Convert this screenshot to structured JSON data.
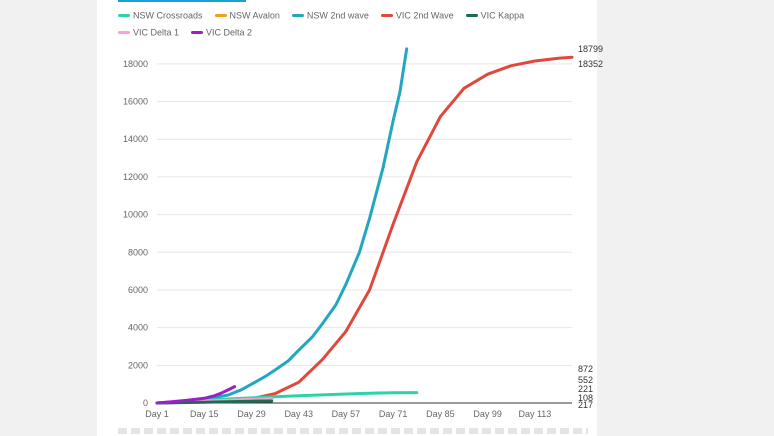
{
  "chart_data": {
    "type": "line",
    "title": "",
    "xlabel": "",
    "ylabel": "",
    "xlim": [
      1,
      124
    ],
    "ylim": [
      0,
      19000
    ],
    "x_ticks": [
      1,
      15,
      29,
      43,
      57,
      71,
      85,
      99,
      113
    ],
    "x_tick_labels": [
      "Day 1",
      "Day 15",
      "Day 29",
      "Day 43",
      "Day 57",
      "Day 71",
      "Day 85",
      "Day 99",
      "Day 113"
    ],
    "y_ticks": [
      0,
      2000,
      4000,
      6000,
      8000,
      10000,
      12000,
      14000,
      16000,
      18000
    ],
    "y_tick_labels": [
      "0",
      "2000",
      "4000",
      "6000",
      "8000",
      "10000",
      "12000",
      "14000",
      "16000",
      "18000"
    ],
    "grid": true,
    "legend_position": "top-left",
    "series": [
      {
        "name": "NSW Crossroads",
        "color": "#2bd4a8",
        "x": [
          1,
          8,
          15,
          22,
          29,
          36,
          43,
          50,
          57,
          64,
          71,
          78
        ],
        "y": [
          0,
          60,
          130,
          210,
          270,
          330,
          380,
          430,
          480,
          520,
          545,
          552
        ]
      },
      {
        "name": "NSW Avalon",
        "color": "#f0a01e",
        "x": [
          1,
          8,
          15,
          22,
          29,
          35
        ],
        "y": [
          0,
          40,
          90,
          140,
          185,
          217
        ]
      },
      {
        "name": "NSW 2nd wave",
        "color": "#23a6c0",
        "x": [
          1,
          8,
          15,
          22,
          26,
          29,
          33,
          36,
          40,
          43,
          47,
          50,
          54,
          57,
          61,
          64,
          68,
          71,
          73,
          75
        ],
        "y": [
          0,
          80,
          200,
          420,
          700,
          1000,
          1400,
          1750,
          2250,
          2800,
          3500,
          4200,
          5200,
          6300,
          8000,
          9800,
          12500,
          15000,
          16500,
          18799
        ]
      },
      {
        "name": "VIC 2nd Wave",
        "color": "#e0483c",
        "x": [
          1,
          15,
          29,
          36,
          43,
          50,
          57,
          64,
          71,
          78,
          85,
          92,
          99,
          106,
          113,
          120,
          124
        ],
        "y": [
          0,
          60,
          220,
          500,
          1100,
          2300,
          3800,
          6000,
          9500,
          12800,
          15200,
          16700,
          17450,
          17900,
          18150,
          18300,
          18352
        ]
      },
      {
        "name": "VIC Kappa",
        "color": "#1e6b52",
        "x": [
          1,
          8,
          15,
          22,
          29,
          35
        ],
        "y": [
          0,
          20,
          45,
          70,
          95,
          108
        ]
      },
      {
        "name": "VIC Delta 1",
        "color": "#f5a3d6",
        "x": [
          1,
          8,
          15,
          22,
          29,
          35
        ],
        "y": [
          0,
          40,
          90,
          140,
          190,
          221
        ]
      },
      {
        "name": "VIC Delta 2",
        "color": "#9b1fc8",
        "x": [
          1,
          5,
          10,
          15,
          18,
          20,
          22,
          24
        ],
        "y": [
          0,
          60,
          150,
          250,
          380,
          520,
          690,
          872
        ]
      }
    ],
    "end_labels": [
      "18799",
      "18352",
      "872",
      "552",
      "221",
      "108",
      "217"
    ]
  }
}
